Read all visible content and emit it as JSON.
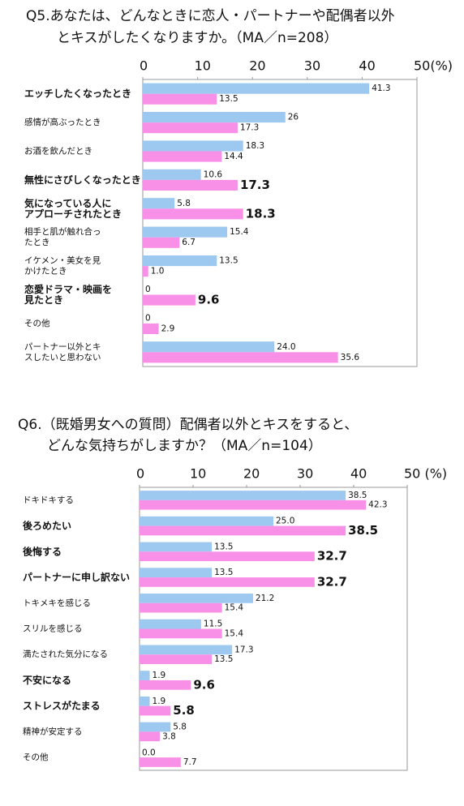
{
  "chart_data": [
    {
      "type": "barh",
      "title": [
        "Q5.あなたは、どんなときに恋人・パートナーや配偶者以外",
        "とキスがしたくなりますか。（MA／n=208）"
      ],
      "categories": [
        [
          "エッチしたくなったとき"
        ],
        [
          "感情が高ぶったとき"
        ],
        [
          "お酒を飲んだとき"
        ],
        [
          "無性にさびしくなったとき"
        ],
        [
          "気になっている人に",
          "アプローチされたとき"
        ],
        [
          "相手と肌が触れ合っ",
          "たとき"
        ],
        [
          "イケメン・美女を見",
          "かけたとき"
        ],
        [
          "恋愛ドラマ・映画を",
          "見たとき"
        ],
        [
          "その他"
        ],
        [
          "パートナー以外とキ",
          "スしたいと思わない"
        ]
      ],
      "bold_categories": [
        0,
        3,
        4,
        7
      ],
      "large_labels": [
        3,
        4,
        7
      ],
      "series": [
        {
          "color": "#9dc8f0",
          "values": [
            41.3,
            26,
            18.3,
            10.6,
            5.8,
            15.4,
            13.5,
            0,
            0,
            24.0
          ],
          "value_labels": [
            "41.3",
            "26",
            "18.3",
            "10.6",
            "5.8",
            "15.4",
            "13.5",
            "0",
            "0",
            "24.0"
          ]
        },
        {
          "color": "#f890e8",
          "values": [
            13.5,
            17.3,
            14.4,
            17.3,
            18.3,
            6.7,
            1.0,
            9.6,
            2.9,
            35.6
          ],
          "value_labels": [
            "13.5",
            "17.3",
            "14.4",
            "17.3",
            "18.3",
            "6.7",
            "1.0",
            "9.6",
            "2.9",
            "35.6"
          ]
        }
      ],
      "xlim": [
        0,
        50
      ],
      "xticks": [
        0,
        10,
        20,
        30,
        40,
        {
          "value": 50,
          "label": "50(%)"
        }
      ],
      "grid": false
    },
    {
      "type": "barh",
      "title": [
        "Q6.（既婚男女への質問）配偶者以外とキスをすると、",
        "どんな気持ちがしますか？（MA／n=104）"
      ],
      "categories": [
        [
          "ドキドキする"
        ],
        [
          "後ろめたい"
        ],
        [
          "後悔する"
        ],
        [
          "パートナーに申し訳ない"
        ],
        [
          "トキメキを感じる"
        ],
        [
          "スリルを感じる"
        ],
        [
          "満たされた気分になる"
        ],
        [
          "不安になる"
        ],
        [
          "ストレスがたまる"
        ],
        [
          "精神が安定する"
        ],
        [
          "その他"
        ]
      ],
      "bold_categories": [
        1,
        2,
        3,
        7,
        8
      ],
      "large_labels": [
        1,
        2,
        3,
        7,
        8
      ],
      "series": [
        {
          "color": "#9dc8f0",
          "values": [
            38.5,
            25.0,
            13.5,
            13.5,
            21.2,
            11.5,
            17.3,
            1.9,
            1.9,
            5.8,
            0.0
          ],
          "value_labels": [
            "38.5",
            "25.0",
            "13.5",
            "13.5",
            "21.2",
            "11.5",
            "17.3",
            "1.9",
            "1.9",
            "5.8",
            "0.0"
          ]
        },
        {
          "color": "#f890e8",
          "values": [
            42.3,
            38.5,
            32.7,
            32.7,
            15.4,
            15.4,
            13.5,
            9.6,
            5.8,
            3.8,
            7.7
          ],
          "value_labels": [
            "42.3",
            "38.5",
            "32.7",
            "32.7",
            "15.4",
            "15.4",
            "13.5",
            "9.6",
            "5.8",
            "3.8",
            "7.7"
          ]
        }
      ],
      "xlim": [
        0,
        50
      ],
      "xticks": [
        0,
        10,
        20,
        30,
        40,
        {
          "value": 50,
          "label": "50 (%)"
        }
      ],
      "grid": false
    }
  ]
}
